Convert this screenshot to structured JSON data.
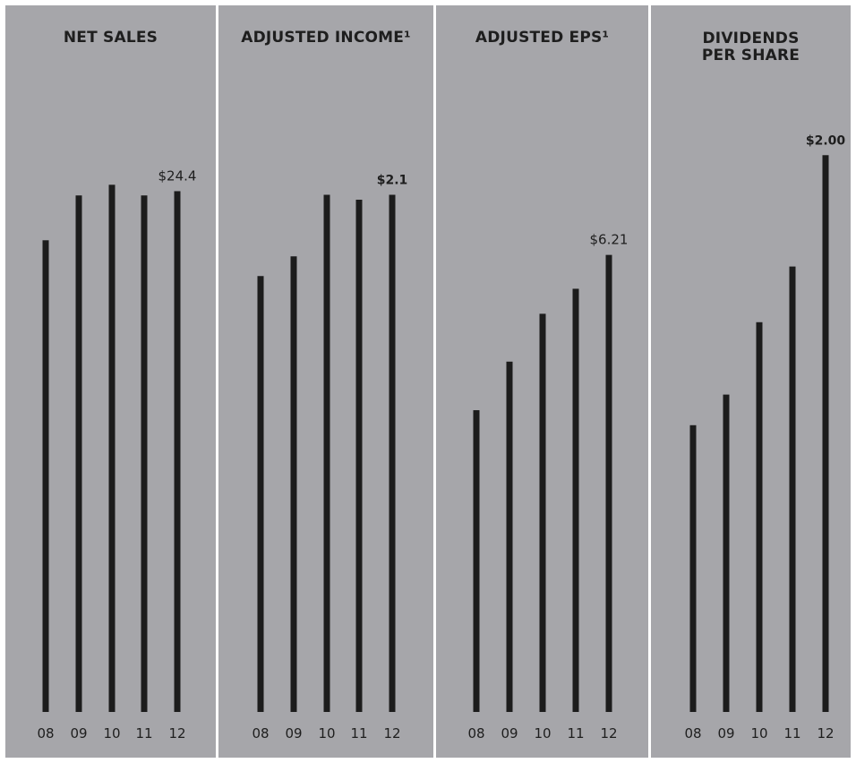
{
  "chart_data": [
    {
      "type": "bar",
      "title": "NET SALES",
      "categories": [
        "08",
        "09",
        "10",
        "11",
        "12"
      ],
      "values": [
        22.1,
        24.2,
        24.7,
        24.2,
        24.4
      ],
      "data_labels": [
        "",
        "",
        "",
        "",
        "$24.4"
      ],
      "ylim": [
        0,
        30
      ]
    },
    {
      "type": "bar",
      "title": "ADJUSTED INCOME¹",
      "categories": [
        "08",
        "09",
        "10",
        "11",
        "12"
      ],
      "values": [
        1.77,
        1.85,
        2.1,
        2.08,
        2.1
      ],
      "data_labels": [
        "",
        "",
        "",
        "",
        "$2.1"
      ],
      "ylim": [
        0,
        2.6
      ]
    },
    {
      "type": "bar",
      "title": "ADJUSTED EPS¹",
      "categories": [
        "08",
        "09",
        "10",
        "11",
        "12"
      ],
      "values": [
        4.1,
        4.76,
        5.41,
        5.75,
        6.21
      ],
      "data_labels": [
        "",
        "",
        "",
        "",
        "$6.21"
      ],
      "ylim": [
        0,
        8.7
      ]
    },
    {
      "type": "bar",
      "title": "DIVIDENDS PER SHARE",
      "title_lines": [
        "DIVIDENDS",
        "PER SHARE"
      ],
      "categories": [
        "08",
        "09",
        "10",
        "11",
        "12"
      ],
      "values": [
        1.03,
        1.14,
        1.4,
        1.6,
        2.0
      ],
      "data_labels": [
        "",
        "",
        "",
        "",
        "$2.00"
      ],
      "ylim": [
        0,
        2.3
      ]
    }
  ],
  "colors": {
    "panel_bg": "#a6a6aa",
    "bar": "#1c1c1c",
    "text": "#1e1e1e"
  }
}
